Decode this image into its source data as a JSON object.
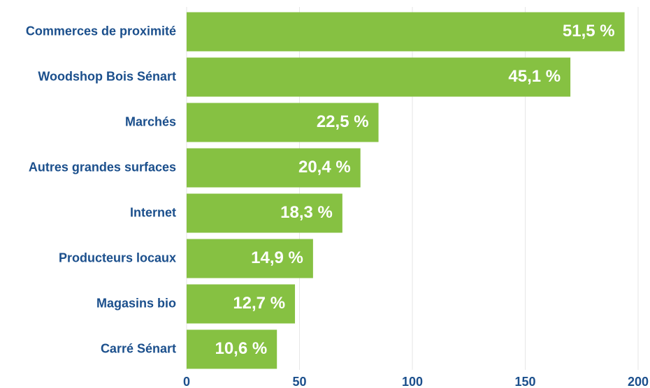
{
  "chart_data": {
    "type": "barh",
    "categories": [
      "Commerces de proximité",
      "Woodshop Bois Sénart",
      "Marchés",
      "Autres grandes surfaces",
      "Internet",
      "Producteurs locaux",
      "Magasins bio",
      "Carré Sénart"
    ],
    "values": [
      194,
      170,
      85,
      77,
      69,
      56,
      48,
      40
    ],
    "value_labels": [
      "51,5 %",
      "45,1 %",
      "22,5 %",
      "20,4 %",
      "18,3 %",
      "14,9 %",
      "12,7 %",
      "10,6 %"
    ],
    "color": "#86c142",
    "xlim": [
      0,
      200
    ],
    "xticks": [
      0,
      50,
      100,
      150,
      200
    ],
    "grid": true
  }
}
